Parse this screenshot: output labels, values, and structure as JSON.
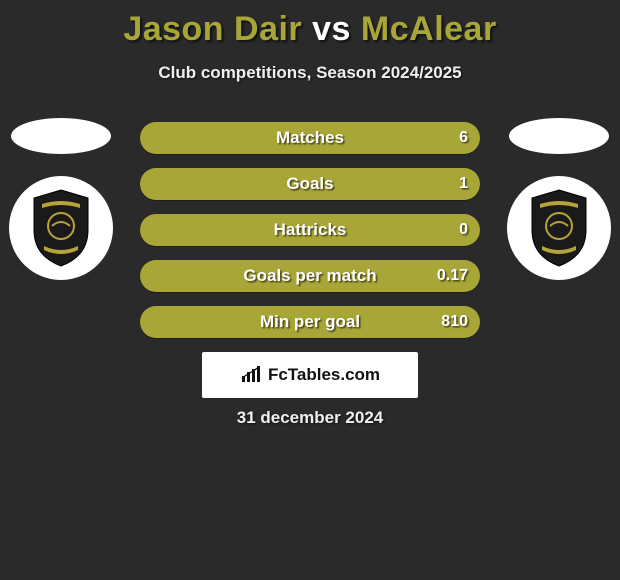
{
  "title": {
    "player1": "Jason Dair",
    "vs": "vs",
    "player2": "McAlear",
    "player1_color": "#a9a638",
    "vs_color": "#ffffff",
    "player2_color": "#a9a638"
  },
  "subtitle": "Club competitions, Season 2024/2025",
  "date": "31 december 2024",
  "brand": "FcTables.com",
  "colors": {
    "background": "#2a2a2a",
    "player1_bar": "#a9a638",
    "player2_bar": "#a9a638",
    "oval_left": "#ffffff",
    "oval_right": "#ffffff",
    "badge_bg": "#ffffff",
    "shield_fill": "#1a1a1a",
    "shield_accent": "#b6a33a",
    "brand_bg": "#ffffff",
    "brand_text": "#111111"
  },
  "stats": [
    {
      "label": "Matches",
      "p1": "",
      "p2": "6",
      "p1_pct": 0,
      "p2_pct": 100
    },
    {
      "label": "Goals",
      "p1": "",
      "p2": "1",
      "p1_pct": 0,
      "p2_pct": 100
    },
    {
      "label": "Hattricks",
      "p1": "",
      "p2": "0",
      "p1_pct": 0,
      "p2_pct": 100
    },
    {
      "label": "Goals per match",
      "p1": "",
      "p2": "0.17",
      "p1_pct": 0,
      "p2_pct": 100
    },
    {
      "label": "Min per goal",
      "p1": "",
      "p2": "810",
      "p1_pct": 0,
      "p2_pct": 100
    }
  ],
  "badges": {
    "left_team": "Livingston",
    "right_team": "Livingston"
  }
}
